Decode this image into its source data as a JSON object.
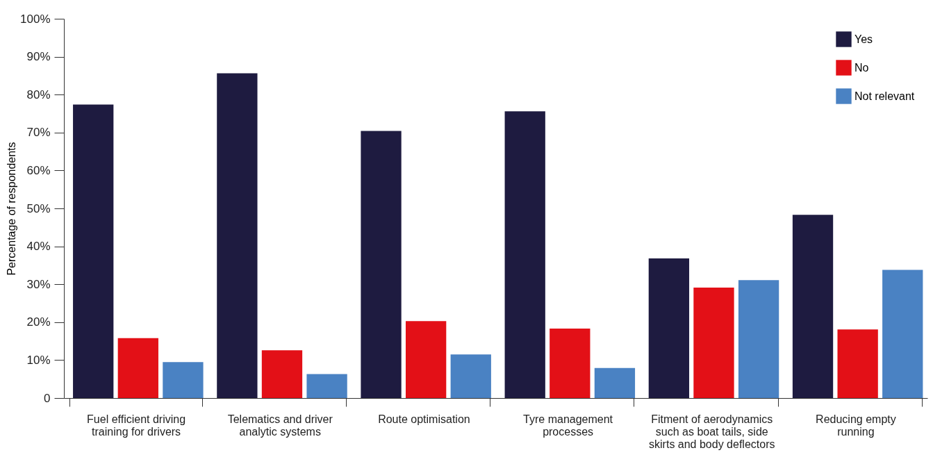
{
  "chart_data": {
    "type": "bar",
    "ylabel": "Percentage of respondents",
    "categories": [
      "Fuel efficient driving\ntraining for drivers",
      "Telematics and driver\nanalytic systems",
      "Route optimisation",
      "Tyre management\nprocesses",
      "Fitment of aerodynamics\nsuch as boat tails, side\nskirts and body deflectors",
      "Reducing empty\nrunning"
    ],
    "series": [
      {
        "name": "Yes",
        "color": "#1e1b40",
        "values": [
          77.4,
          85.6,
          70.4,
          75.6,
          36.8,
          48.3
        ]
      },
      {
        "name": "No",
        "color": "#e31017",
        "values": [
          15.8,
          12.6,
          20.3,
          18.3,
          29.1,
          18.1
        ]
      },
      {
        "name": "Not relevant",
        "color": "#4a82c3",
        "values": [
          9.5,
          6.3,
          11.5,
          7.9,
          31.1,
          33.8
        ]
      }
    ],
    "ylim": [
      0,
      100
    ],
    "yticks": [
      {
        "value": 0,
        "label": "0"
      },
      {
        "value": 10,
        "label": "10%"
      },
      {
        "value": 20,
        "label": "20%"
      },
      {
        "value": 30,
        "label": "30%"
      },
      {
        "value": 40,
        "label": "40%"
      },
      {
        "value": 50,
        "label": "50%"
      },
      {
        "value": 60,
        "label": "60%"
      },
      {
        "value": 70,
        "label": "70%"
      },
      {
        "value": 80,
        "label": "80%"
      },
      {
        "value": 90,
        "label": "90%"
      },
      {
        "value": 100,
        "label": "100%"
      }
    ],
    "grid": false,
    "legend": "top right"
  }
}
